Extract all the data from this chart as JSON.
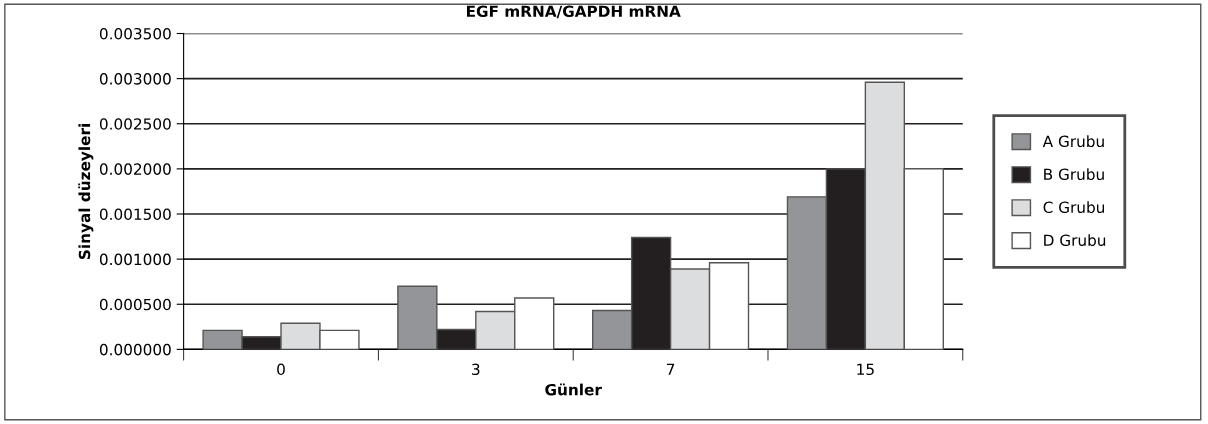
{
  "chart_data": {
    "type": "bar",
    "title": "EGF mRNA/GAPDH mRNA",
    "xlabel": "Günler",
    "ylabel": "Sinyal düzeyleri",
    "categories": [
      "0",
      "3",
      "7",
      "15"
    ],
    "series": [
      {
        "name": "A Grubu",
        "color": "#939598",
        "values": [
          0.00021,
          0.0007,
          0.00043,
          0.00169
        ]
      },
      {
        "name": "B Grubu",
        "color": "#231f20",
        "values": [
          0.00014,
          0.00022,
          0.00124,
          0.002
        ]
      },
      {
        "name": "C Grubu",
        "color": "#dcdddf",
        "values": [
          0.00029,
          0.00042,
          0.00089,
          0.00296
        ]
      },
      {
        "name": "D Grubu",
        "color": "#ffffff",
        "values": [
          0.00021,
          0.00057,
          0.00096,
          0.002
        ]
      }
    ],
    "ylim": [
      0,
      0.0035
    ],
    "yticks": [
      {
        "value": 0,
        "label": "0.000000"
      },
      {
        "value": 0.0005,
        "label": "0.000500"
      },
      {
        "value": 0.001,
        "label": "0.001000"
      },
      {
        "value": 0.0015,
        "label": "0.001500"
      },
      {
        "value": 0.002,
        "label": "0.002000"
      },
      {
        "value": 0.0025,
        "label": "0.002500"
      },
      {
        "value": 0.003,
        "label": "0.003000"
      },
      {
        "value": 0.0035,
        "label": "0.003500"
      }
    ],
    "grid": "y",
    "legend": "right"
  }
}
